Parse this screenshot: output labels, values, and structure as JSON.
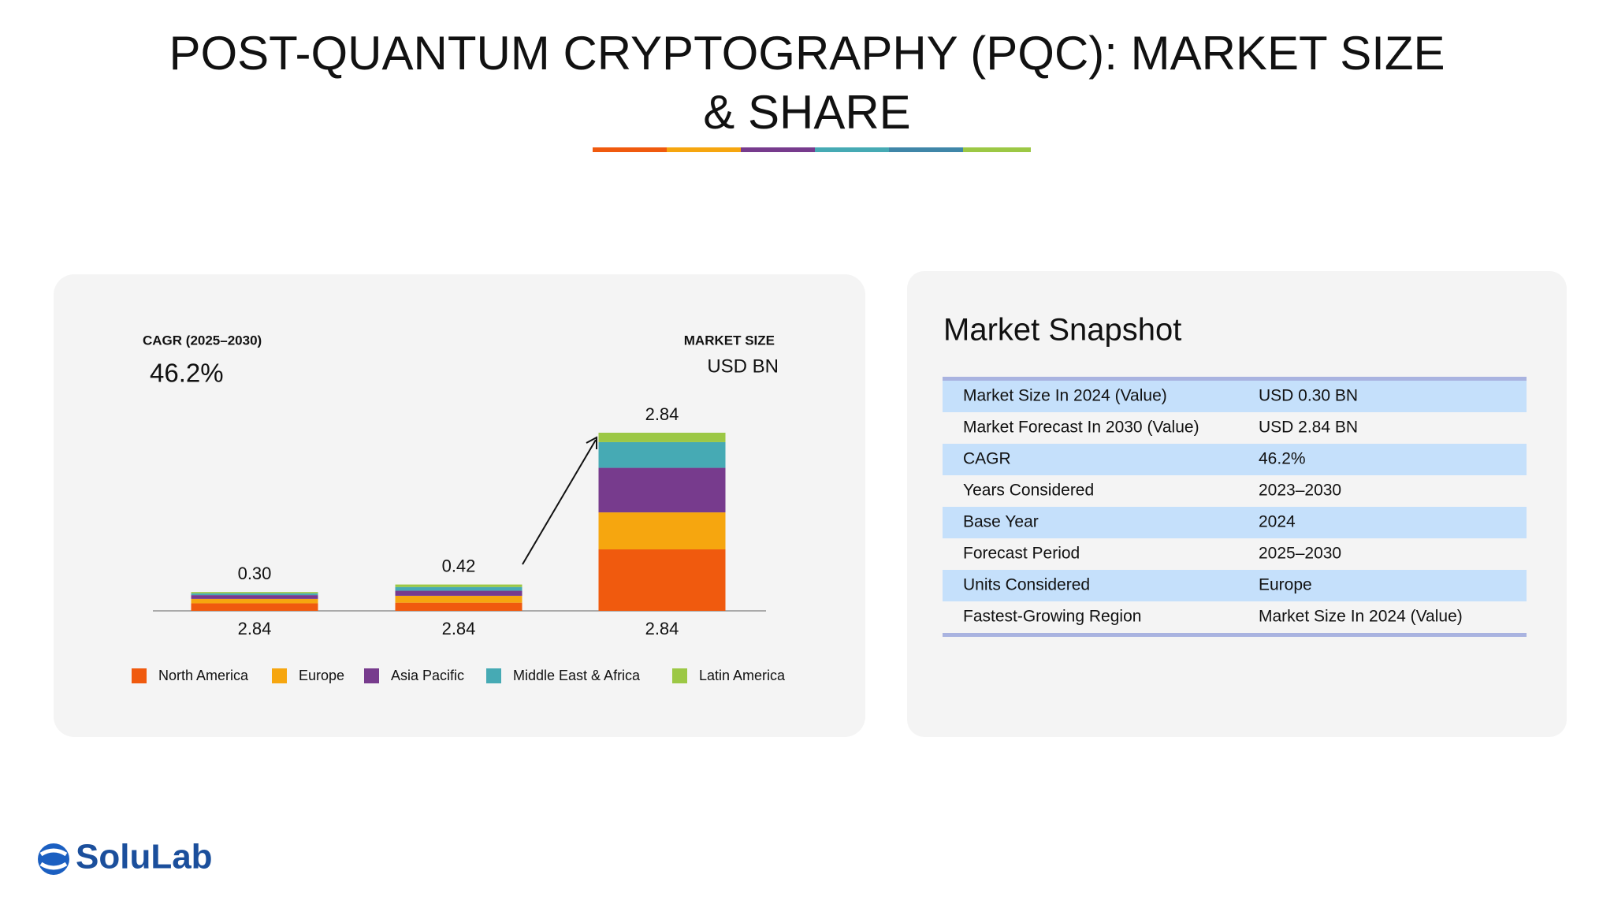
{
  "header": {
    "title_lines": [
      "POST-QUANTUM CRYPTOGRAPHY (PQC): MARKET SIZE",
      "& SHARE"
    ]
  },
  "chart_data": {
    "type": "stacked_bar",
    "annotations": {
      "cagr_label": "CAGR (2025–2030)",
      "cagr_value": "46.2%",
      "size_label": "MARKET SIZE",
      "size_unit": "USD BN"
    },
    "categories": [
      "2.84",
      "2.84",
      "2.84"
    ],
    "total_labels": [
      "0.30",
      "0.42",
      "2.84"
    ],
    "series": [
      {
        "name": "North America",
        "color": "#f05a0e",
        "values": [
          0.12,
          0.13,
          0.98
        ]
      },
      {
        "name": "Europe",
        "color": "#f6a60f",
        "values": [
          0.07,
          0.11,
          0.59
        ]
      },
      {
        "name": "Asia Pacific",
        "color": "#773b8d",
        "values": [
          0.06,
          0.08,
          0.71
        ]
      },
      {
        "name": "Middle East & Africa",
        "color": "#46aab4",
        "values": [
          0.03,
          0.06,
          0.41
        ]
      },
      {
        "name": "Latin America",
        "color": "#9cc845",
        "values": [
          0.02,
          0.04,
          0.15
        ]
      }
    ]
  },
  "snapshot": {
    "title": "Market Snapshot",
    "rows": [
      [
        "Market Size In 2024 (Value)",
        "USD 0.30 BN"
      ],
      [
        "Market Forecast In 2030 (Value)",
        "USD 2.84 BN"
      ],
      [
        "CAGR",
        "46.2%"
      ],
      [
        "Years Considered",
        "2023–2030"
      ],
      [
        "Base Year",
        "2024"
      ],
      [
        "Forecast Period",
        "2025–2030"
      ],
      [
        "Units Considered",
        "Europe"
      ],
      [
        "Fastest-Growing Region",
        "Market Size In 2024 (Value)"
      ]
    ]
  },
  "logo": {
    "text": "SoluLab"
  }
}
